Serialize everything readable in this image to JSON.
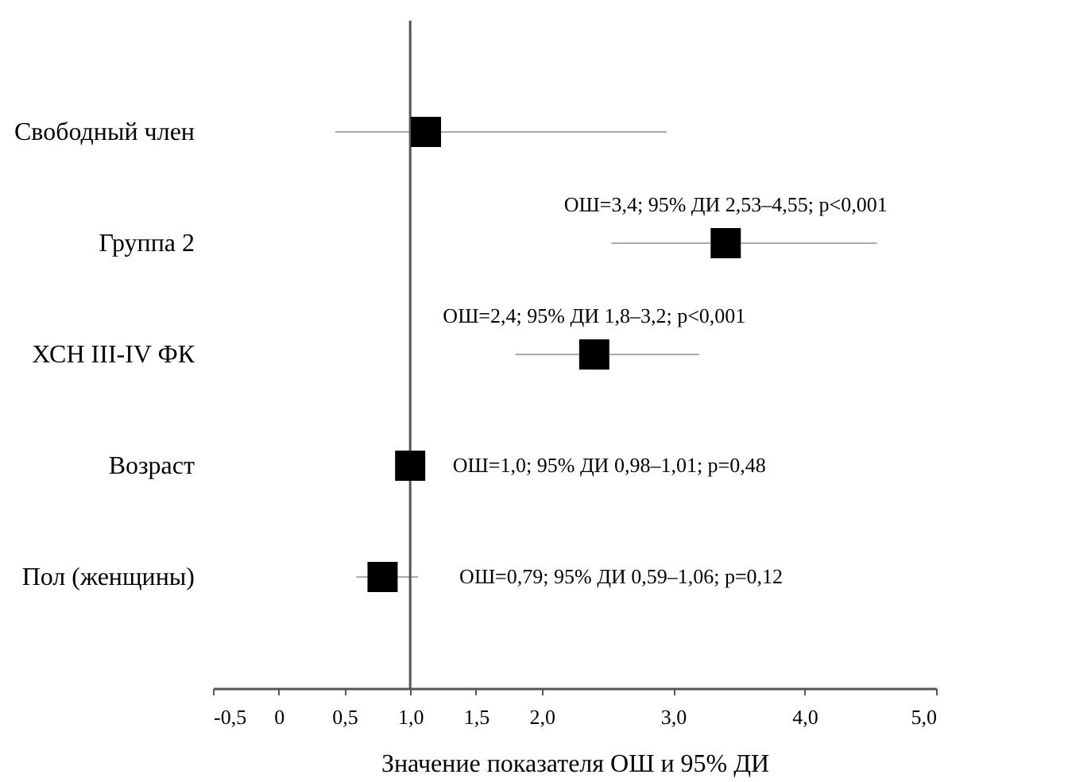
{
  "chart_data": {
    "type": "scatter",
    "orientation": "horizontal",
    "marker": "square",
    "categories": [
      "Свободный член",
      "Группа 2",
      "ХСН III-IV ФК",
      "Возраст",
      "Пол (женщины)"
    ],
    "series": [
      {
        "color": "#000000",
        "values": [
          1.12,
          3.4,
          2.4,
          1.0,
          0.79
        ],
        "errors": [
          [
            0.43,
            2.95
          ],
          [
            2.53,
            4.55
          ],
          [
            1.8,
            3.2
          ],
          [
            0.98,
            1.01
          ],
          [
            0.59,
            1.06
          ]
        ],
        "value_labels": [
          null,
          "ОШ=3,4; 95% ДИ 2,53–4,55; p<0,001",
          "ОШ=2,4; 95% ДИ 1,8–3,2; p<0,001",
          "ОШ=1,0; 95% ДИ 0,98–1,01; p=0,48",
          "ОШ=0,79; 95% ДИ 0,59–1,06; p=0,12"
        ]
      }
    ],
    "xlabel": "Значение показателя ОШ и 95% ДИ",
    "xlim": [
      -0.5,
      5.0
    ],
    "xticks": [
      {
        "value": -0.5,
        "label": "-0,5"
      },
      {
        "value": 0,
        "label": "0"
      },
      {
        "value": 0.5,
        "label": "0,5"
      },
      {
        "value": 1,
        "label": "1,0"
      },
      {
        "value": 1.5,
        "label": "1,5"
      },
      {
        "value": 2,
        "label": "2,0"
      },
      {
        "value": 3,
        "label": "3,0"
      },
      {
        "value": 4,
        "label": "4,0"
      },
      {
        "value": 5,
        "label": "5,0"
      }
    ],
    "ref_lines": [
      {
        "axis": "x",
        "value": 1,
        "color": "#555555"
      }
    ],
    "grid": false
  }
}
